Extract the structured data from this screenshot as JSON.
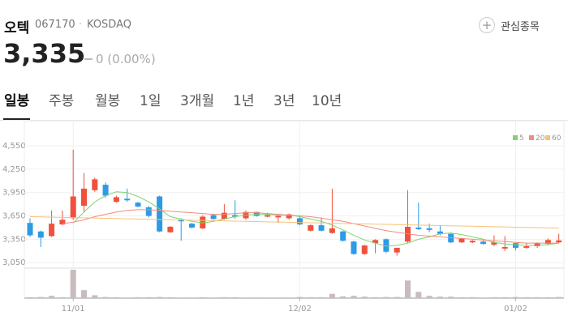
{
  "header": {
    "name": "오텍",
    "code": "067170",
    "market": "KOSDAQ",
    "price": "3,335",
    "change": "0 (0.00%)",
    "watch_label": "관심종목"
  },
  "tabs": [
    "일봉",
    "주봉",
    "월봉",
    "1일",
    "3개월",
    "1년",
    "3년",
    "10년"
  ],
  "chart_data": {
    "type": "candlestick",
    "categories": [
      null,
      null,
      null,
      null,
      "11/01",
      null,
      null,
      null,
      null,
      null,
      null,
      null,
      null,
      null,
      null,
      null,
      null,
      null,
      null,
      null,
      null,
      null,
      null,
      null,
      null,
      "12/02",
      null,
      null,
      null,
      null,
      null,
      null,
      null,
      null,
      null,
      null,
      null,
      null,
      null,
      null,
      null,
      null,
      null,
      null,
      null,
      "01/02",
      null,
      null,
      null,
      null
    ],
    "open": [
      3560,
      3450,
      3390,
      3540,
      3620,
      3780,
      3980,
      4050,
      3830,
      3870,
      3820,
      3760,
      3900,
      3440,
      3600,
      3550,
      3490,
      3660,
      3610,
      3660,
      3620,
      3700,
      3640,
      3630,
      3620,
      3620,
      3460,
      3530,
      3430,
      3450,
      3320,
      3160,
      3300,
      3350,
      3180,
      3320,
      3500,
      3490,
      3450,
      3420,
      3310,
      3310,
      3320,
      3280,
      3230,
      3300,
      3240,
      3260,
      3290,
      3310
    ],
    "high": [
      3620,
      3460,
      3720,
      3720,
      4500,
      4200,
      4140,
      4080,
      3910,
      4000,
      3830,
      3780,
      3910,
      3520,
      3620,
      3560,
      3660,
      3680,
      3800,
      3850,
      3720,
      3700,
      3690,
      3660,
      3680,
      3640,
      3540,
      3630,
      4000,
      3460,
      3330,
      3280,
      3350,
      3360,
      3240,
      3980,
      3820,
      3550,
      3530,
      3430,
      3370,
      3340,
      3330,
      3400,
      3390,
      3310,
      3300,
      3310,
      3360,
      3420
    ],
    "low": [
      3380,
      3250,
      3380,
      3530,
      3600,
      3700,
      3960,
      3880,
      3820,
      3830,
      3760,
      3630,
      3440,
      3430,
      3330,
      3490,
      3480,
      3600,
      3600,
      3610,
      3600,
      3640,
      3630,
      3560,
      3600,
      3530,
      3450,
      3450,
      3420,
      3320,
      3150,
      3150,
      3170,
      3170,
      3140,
      3300,
      3470,
      3440,
      3400,
      3300,
      3300,
      3300,
      3280,
      3260,
      3200,
      3210,
      3230,
      3240,
      3280,
      3300
    ],
    "close": [
      3400,
      3370,
      3550,
      3600,
      3900,
      4000,
      4120,
      3910,
      3890,
      3850,
      3770,
      3650,
      3450,
      3510,
      3580,
      3500,
      3640,
      3610,
      3690,
      3640,
      3700,
      3650,
      3660,
      3650,
      3670,
      3540,
      3530,
      3460,
      3490,
      3330,
      3160,
      3270,
      3340,
      3190,
      3240,
      3510,
      3480,
      3470,
      3420,
      3310,
      3360,
      3330,
      3290,
      3310,
      3250,
      3240,
      3260,
      3300,
      3340,
      3335
    ],
    "volume": [
      3,
      4,
      8,
      3,
      100,
      28,
      10,
      4,
      3,
      2,
      3,
      3,
      4,
      3,
      2,
      2,
      3,
      2,
      3,
      3,
      2,
      2,
      2,
      2,
      2,
      4,
      3,
      3,
      15,
      6,
      8,
      5,
      3,
      4,
      4,
      62,
      22,
      8,
      5,
      5,
      3,
      3,
      2,
      3,
      3,
      4,
      3,
      3,
      3,
      4
    ],
    "vlim": [
      0,
      100
    ],
    "volume_color": "#c9bcbc",
    "up_color": "#f0503c",
    "down_color": "#2d9ae6",
    "series": [
      {
        "name": "5",
        "color": "#7fd46e",
        "values": [
          null,
          null,
          null,
          null,
          3560,
          3700,
          3830,
          3910,
          3960,
          3950,
          3900,
          3830,
          3740,
          3640,
          3610,
          3580,
          3560,
          3580,
          3610,
          3640,
          3660,
          3670,
          3670,
          3660,
          3660,
          3640,
          3610,
          3580,
          3530,
          3470,
          3400,
          3340,
          3300,
          3260,
          3270,
          3300,
          3350,
          3380,
          3420,
          3430,
          3410,
          3380,
          3350,
          3310,
          3290,
          3280,
          3270,
          3270,
          3280,
          3300
        ]
      },
      {
        "name": "20",
        "color": "#f28b80",
        "values": [
          null,
          null,
          null,
          3550,
          3570,
          3600,
          3640,
          3670,
          3700,
          3720,
          3730,
          3730,
          3720,
          3710,
          3700,
          3690,
          3680,
          3670,
          3670,
          3680,
          3690,
          3690,
          3680,
          3670,
          3660,
          3650,
          3640,
          3620,
          3600,
          3580,
          3550,
          3520,
          3490,
          3460,
          3440,
          3420,
          3400,
          3390,
          3380,
          3370,
          3360,
          3350,
          3340,
          3330,
          3320,
          3310,
          3300,
          3300,
          3300,
          3300
        ]
      },
      {
        "name": "60",
        "color": "#f7c27a",
        "values": [
          3640,
          3637,
          3634,
          3631,
          3628,
          3625,
          3622,
          3619,
          3616,
          3613,
          3610,
          3607,
          3604,
          3601,
          3598,
          3595,
          3592,
          3589,
          3586,
          3583,
          3580,
          3577,
          3574,
          3571,
          3568,
          3565,
          3562,
          3559,
          3556,
          3553,
          3550,
          3547,
          3544,
          3541,
          3538,
          3535,
          3532,
          3529,
          3526,
          3523,
          3520,
          3517,
          3514,
          3511,
          3508,
          3505,
          3502,
          3499,
          3496,
          3493
        ]
      }
    ],
    "ylim": [
      3000,
      4800
    ],
    "yticks": [
      {
        "value": 3050,
        "label": "3,050"
      },
      {
        "value": 3350,
        "label": "3,350"
      },
      {
        "value": 3650,
        "label": "3,650"
      },
      {
        "value": 3950,
        "label": "3,950"
      },
      {
        "value": 4250,
        "label": "4,250"
      },
      {
        "value": 4550,
        "label": "4,550"
      }
    ],
    "grid": true
  }
}
